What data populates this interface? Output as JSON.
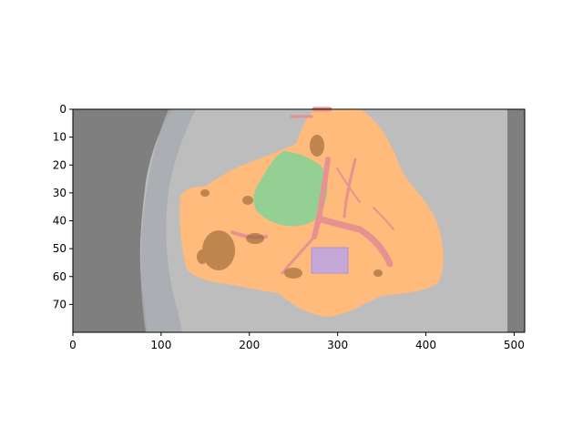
{
  "figure": {
    "type": "image-overlay",
    "image_shape": [
      80,
      512
    ],
    "x_axis": {
      "range": [
        0,
        512
      ],
      "ticks": [
        "0",
        "100",
        "200",
        "300",
        "400",
        "500"
      ]
    },
    "y_axis": {
      "range": [
        0,
        80
      ],
      "inverted": true,
      "ticks": [
        "0",
        "10",
        "20",
        "30",
        "40",
        "50",
        "60",
        "70"
      ]
    },
    "colors": {
      "background_dark": "#7f7f7f",
      "background_light": "#bdbdbd",
      "organ_region": "#ffbb7c",
      "green_region": "#94cf94",
      "vessels": "#e79191",
      "purple_region": "#c4a8d8",
      "dark_spots": "#8a5a2a"
    }
  }
}
